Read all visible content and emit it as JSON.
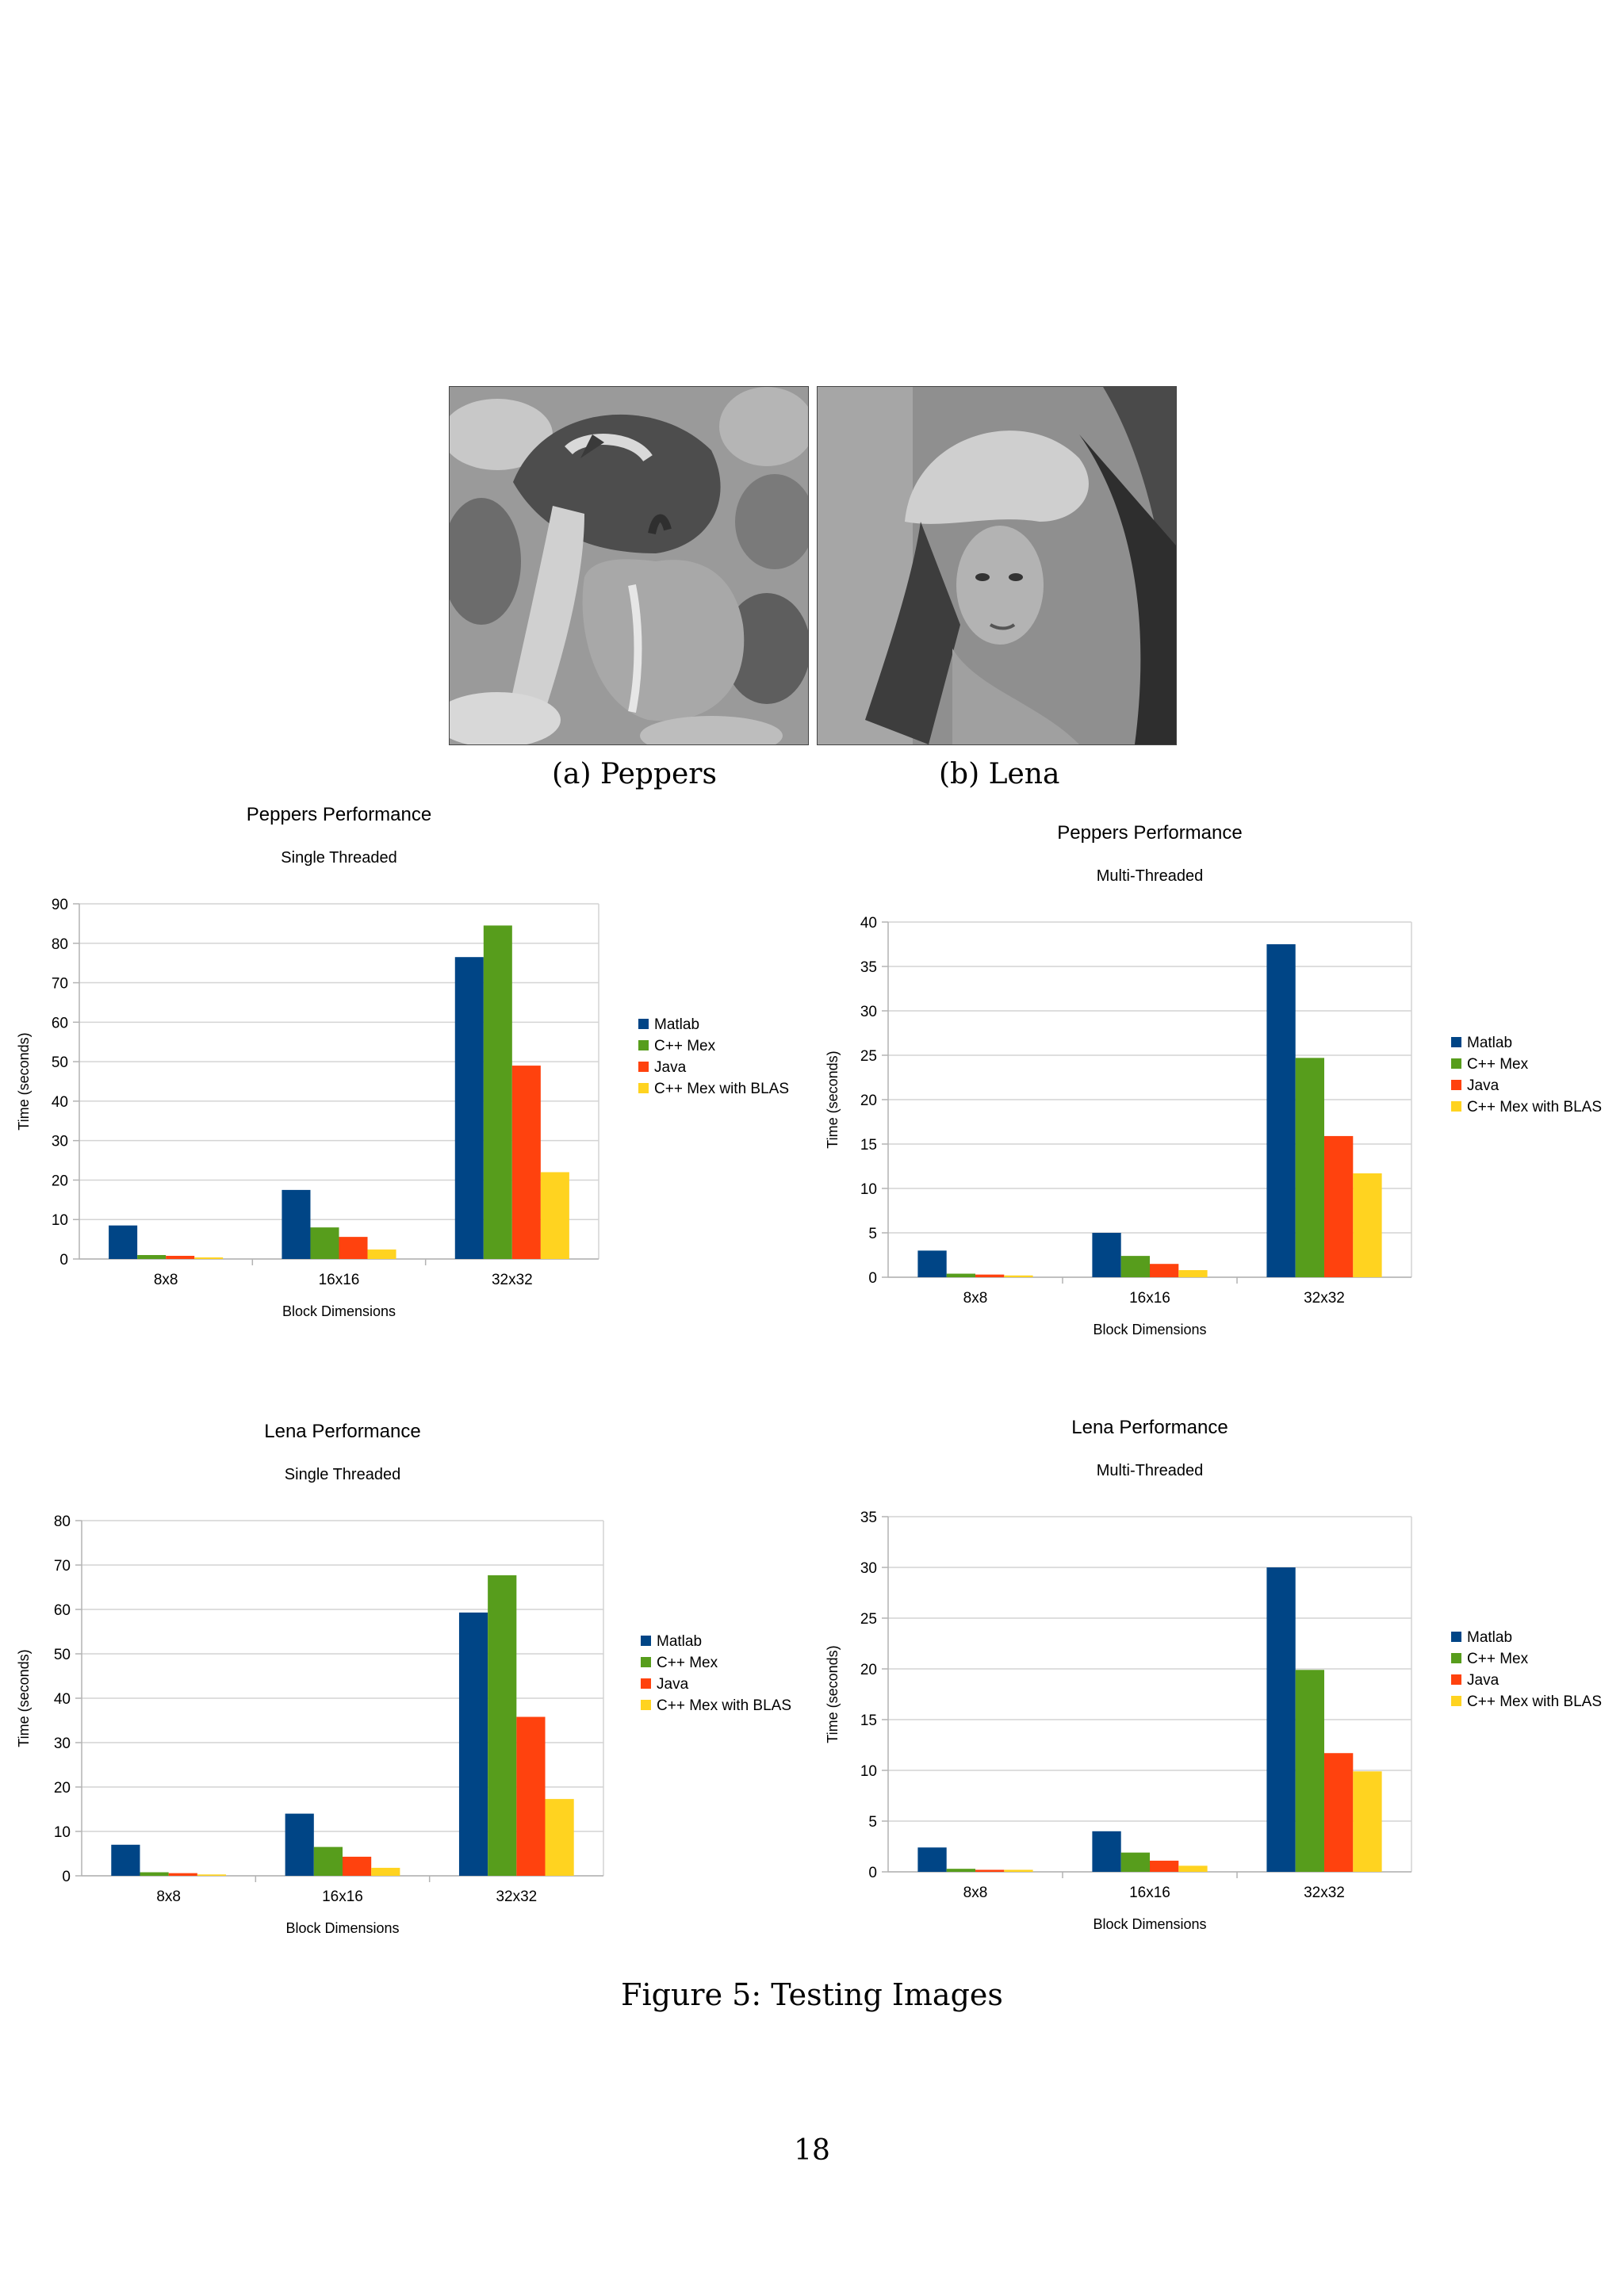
{
  "images": [
    {
      "caption": "(a) Peppers"
    },
    {
      "caption": "(b) Lena"
    }
  ],
  "figure_caption": "Figure 5: Testing Images",
  "page_number": "18",
  "colors": {
    "Matlab": "#004586",
    "C++ Mex": "#579d1c",
    "Java": "#ff420e",
    "C++ Mex with BLAS": "#ffd320"
  },
  "chart_data": [
    {
      "type": "bar",
      "title": "Peppers Performance",
      "subtitle": "Single Threaded",
      "xlabel": "Block Dimensions",
      "ylabel": "Time (seconds)",
      "categories": [
        "8x8",
        "16x16",
        "32x32"
      ],
      "ylim": [
        0,
        90
      ],
      "yticks": [
        0,
        10,
        20,
        30,
        40,
        50,
        60,
        70,
        80,
        90
      ],
      "grid": true,
      "legend": "right",
      "series": [
        {
          "name": "Matlab",
          "values": [
            8.5,
            17.5,
            76.5
          ]
        },
        {
          "name": "C++ Mex",
          "values": [
            1.0,
            8.0,
            84.5
          ]
        },
        {
          "name": "Java",
          "values": [
            0.8,
            5.6,
            49.0
          ]
        },
        {
          "name": "C++ Mex with BLAS",
          "values": [
            0.4,
            2.4,
            22.0
          ]
        }
      ]
    },
    {
      "type": "bar",
      "title": "Peppers Performance",
      "subtitle": "Multi-Threaded",
      "xlabel": "Block Dimensions",
      "ylabel": "Time (seconds)",
      "categories": [
        "8x8",
        "16x16",
        "32x32"
      ],
      "ylim": [
        0,
        40
      ],
      "yticks": [
        0,
        5,
        10,
        15,
        20,
        25,
        30,
        35,
        40
      ],
      "grid": true,
      "legend": "right",
      "series": [
        {
          "name": "Matlab",
          "values": [
            3.0,
            5.0,
            37.5
          ]
        },
        {
          "name": "C++ Mex",
          "values": [
            0.4,
            2.4,
            24.7
          ]
        },
        {
          "name": "Java",
          "values": [
            0.3,
            1.5,
            15.9
          ]
        },
        {
          "name": "C++ Mex with BLAS",
          "values": [
            0.2,
            0.8,
            11.7
          ]
        }
      ]
    },
    {
      "type": "bar",
      "title": "Lena Performance",
      "subtitle": "Single Threaded",
      "xlabel": "Block Dimensions",
      "ylabel": "Time (seconds)",
      "categories": [
        "8x8",
        "16x16",
        "32x32"
      ],
      "ylim": [
        0,
        80
      ],
      "yticks": [
        0,
        10,
        20,
        30,
        40,
        50,
        60,
        70,
        80
      ],
      "grid": true,
      "legend": "right",
      "series": [
        {
          "name": "Matlab",
          "values": [
            7.0,
            14.0,
            59.3
          ]
        },
        {
          "name": "C++ Mex",
          "values": [
            0.8,
            6.5,
            67.7
          ]
        },
        {
          "name": "Java",
          "values": [
            0.6,
            4.3,
            35.8
          ]
        },
        {
          "name": "C++ Mex with BLAS",
          "values": [
            0.3,
            1.8,
            17.3
          ]
        }
      ]
    },
    {
      "type": "bar",
      "title": "Lena Performance",
      "subtitle": "Multi-Threaded",
      "xlabel": "Block Dimensions",
      "ylabel": "Time (seconds)",
      "categories": [
        "8x8",
        "16x16",
        "32x32"
      ],
      "ylim": [
        0,
        35
      ],
      "yticks": [
        0,
        5,
        10,
        15,
        20,
        25,
        30,
        35
      ],
      "grid": true,
      "legend": "right",
      "series": [
        {
          "name": "Matlab",
          "values": [
            2.4,
            4.0,
            30.0
          ]
        },
        {
          "name": "C++ Mex",
          "values": [
            0.3,
            1.9,
            19.9
          ]
        },
        {
          "name": "Java",
          "values": [
            0.2,
            1.1,
            11.7
          ]
        },
        {
          "name": "C++ Mex with BLAS",
          "values": [
            0.2,
            0.6,
            9.9
          ]
        }
      ]
    }
  ]
}
